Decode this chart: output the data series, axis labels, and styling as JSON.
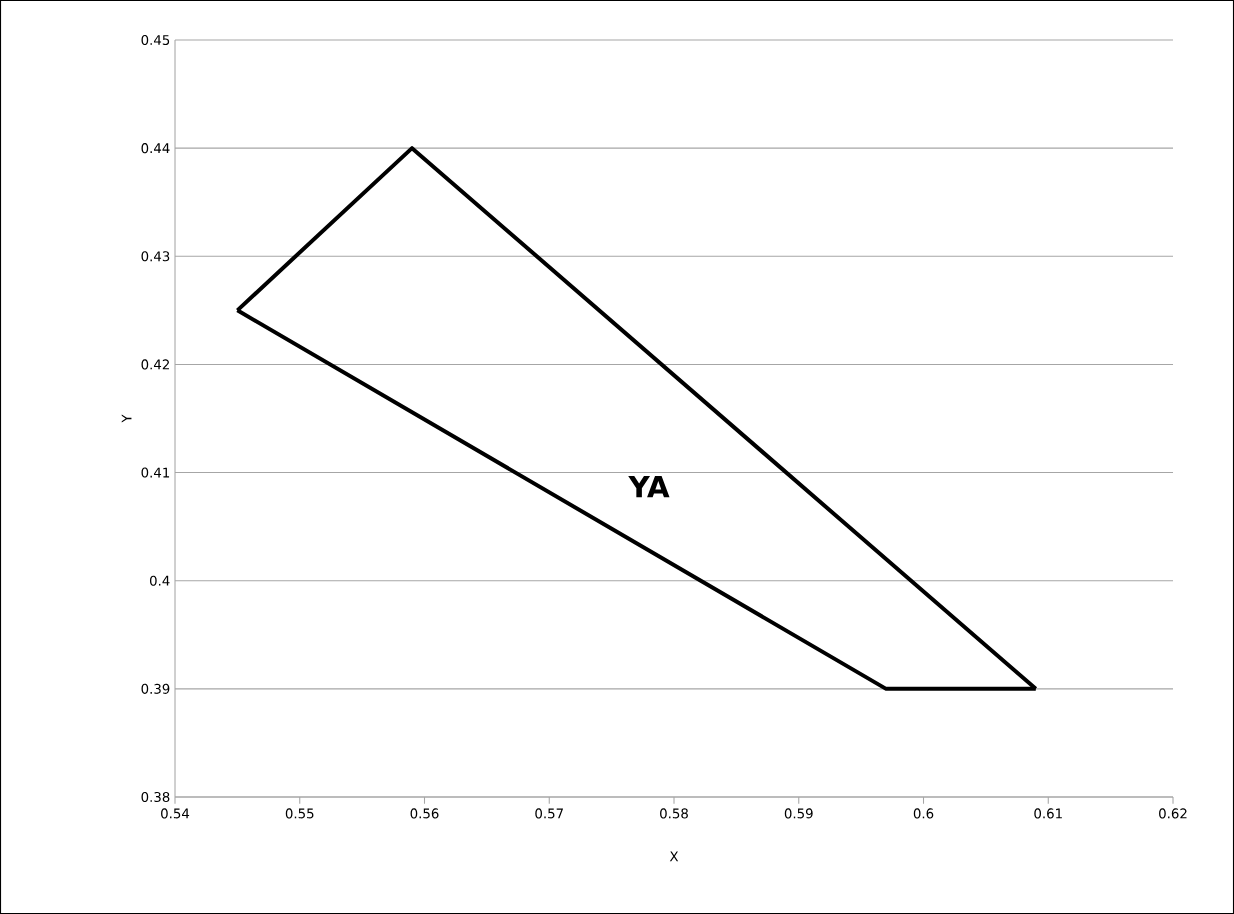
{
  "chart_data": {
    "type": "line",
    "xlabel": "X",
    "ylabel": "Y",
    "series": [
      {
        "color": "#000000",
        "x": [
          0.545,
          0.559,
          0.609
        ],
        "values": [
          0.425,
          0.44,
          0.39
        ]
      },
      {
        "color": "#000000",
        "x": [
          0.545,
          0.597,
          0.609
        ],
        "values": [
          0.425,
          0.39,
          0.39
        ]
      }
    ],
    "xlim": [
      0.54,
      0.62
    ],
    "xticks": [
      0.54,
      0.55,
      0.56,
      0.57,
      0.58,
      0.59,
      0.6,
      0.61,
      0.62
    ],
    "ylim": [
      0.38,
      0.45
    ],
    "yticks": [
      0.38,
      0.39,
      0.4,
      0.41,
      0.42,
      0.43,
      0.44,
      0.45
    ],
    "grid": "y",
    "marker": "none",
    "line_style": "solid",
    "annotations": [
      "YA"
    ]
  }
}
